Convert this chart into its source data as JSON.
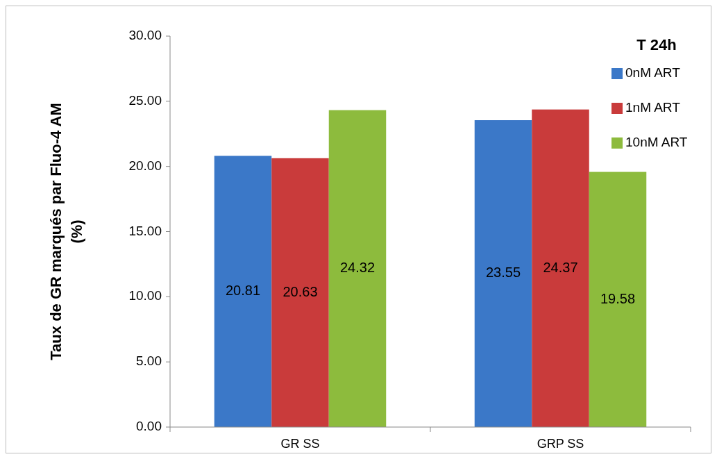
{
  "chart_data": {
    "type": "bar",
    "ylabel": "Taux de GR marqués par Fluo-4 AM\n(%)",
    "legend_title": "T 24h",
    "categories": [
      "GR SS",
      "GRP SS"
    ],
    "series": [
      {
        "name": "0nM ART",
        "color": "#3b78c8",
        "values": [
          20.81,
          23.55
        ]
      },
      {
        "name": "1nM ART",
        "color": "#c93b3b",
        "values": [
          20.63,
          24.37
        ]
      },
      {
        "name": "10nM ART",
        "color": "#8dbb3d",
        "values": [
          24.32,
          19.58
        ]
      }
    ],
    "ylim": [
      0,
      30
    ],
    "yticks": [
      {
        "value": 0,
        "label": "0.00"
      },
      {
        "value": 5,
        "label": "5.00"
      },
      {
        "value": 10,
        "label": "10.00"
      },
      {
        "value": 15,
        "label": "15.00"
      },
      {
        "value": 20,
        "label": "20.00"
      },
      {
        "value": 25,
        "label": "25.00"
      },
      {
        "value": 30,
        "label": "30.00"
      }
    ],
    "data_labels": true,
    "grid": false,
    "legend": "top right"
  }
}
